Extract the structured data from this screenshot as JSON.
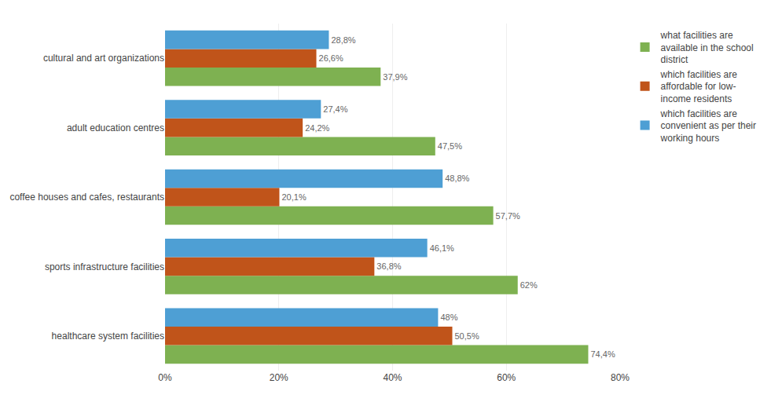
{
  "chart_data": {
    "type": "bar",
    "orientation": "horizontal",
    "categories": [
      "healthcare system facilities",
      "sports infrastructure facilities",
      "coffee houses and cafes, restaurants",
      "adult education centres",
      "cultural and art organizations"
    ],
    "series": [
      {
        "name": "what facilities are\navailable in the school\ndistrict",
        "color": "#7EB151",
        "values": [
          74.4,
          62.0,
          57.7,
          47.5,
          37.9
        ],
        "value_labels": [
          "74,4%",
          "62%",
          "57,7%",
          "47,5%",
          "37,9%"
        ]
      },
      {
        "name": "which facilities are\naffordable for low-\nincome residents",
        "color": "#C0541A",
        "values": [
          50.5,
          36.8,
          20.1,
          24.2,
          26.6
        ],
        "value_labels": [
          "50,5%",
          "36,8%",
          "20,1%",
          "24,2%",
          "26,6%"
        ]
      },
      {
        "name": "which facilities are\nconvenient as per their\nworking hours",
        "color": "#4E9FD4",
        "values": [
          48.0,
          46.1,
          48.8,
          27.4,
          28.8
        ],
        "value_labels": [
          "48%",
          "46,1%",
          "48,8%",
          "27,4%",
          "28,8%"
        ]
      }
    ],
    "xlim": [
      0,
      80
    ],
    "xticks": [
      {
        "value": 0,
        "label": "0%"
      },
      {
        "value": 20,
        "label": "20%"
      },
      {
        "value": 40,
        "label": "40%"
      },
      {
        "value": 60,
        "label": "60%"
      },
      {
        "value": 80,
        "label": "80%"
      }
    ],
    "grid": true,
    "legend": "upper right",
    "data_labels": true
  }
}
